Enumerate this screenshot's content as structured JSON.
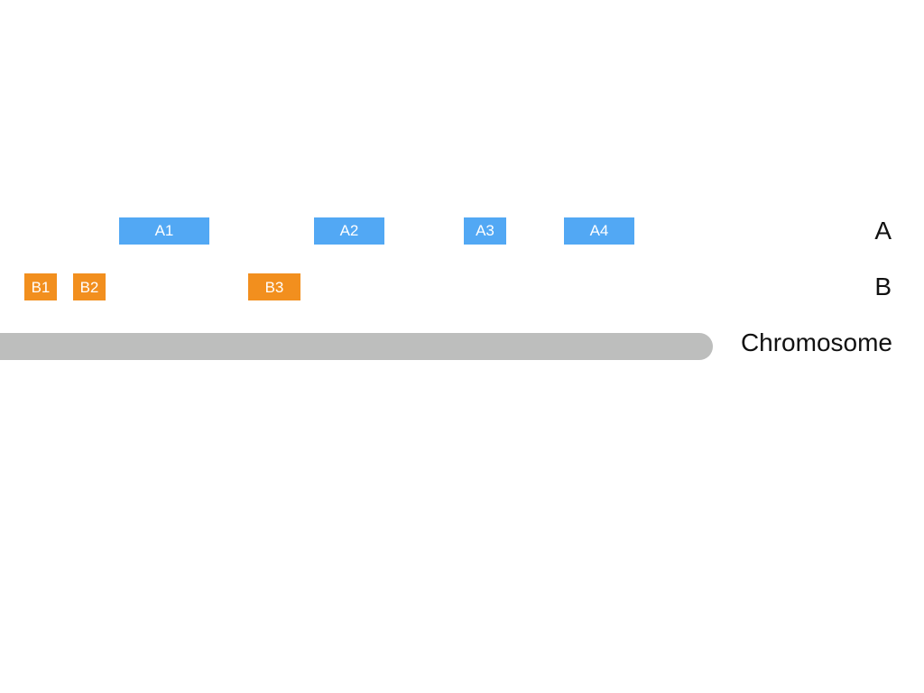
{
  "tracks": {
    "a": {
      "label": "A",
      "color": "#52a8f4",
      "features": [
        {
          "name": "A1"
        },
        {
          "name": "A2"
        },
        {
          "name": "A3"
        },
        {
          "name": "A4"
        }
      ]
    },
    "b": {
      "label": "B",
      "color": "#f28f1e",
      "features": [
        {
          "name": "B1"
        },
        {
          "name": "B2"
        },
        {
          "name": "B3"
        }
      ]
    }
  },
  "chromosome": {
    "label": "Chromosome",
    "color": "#bdbebd"
  }
}
